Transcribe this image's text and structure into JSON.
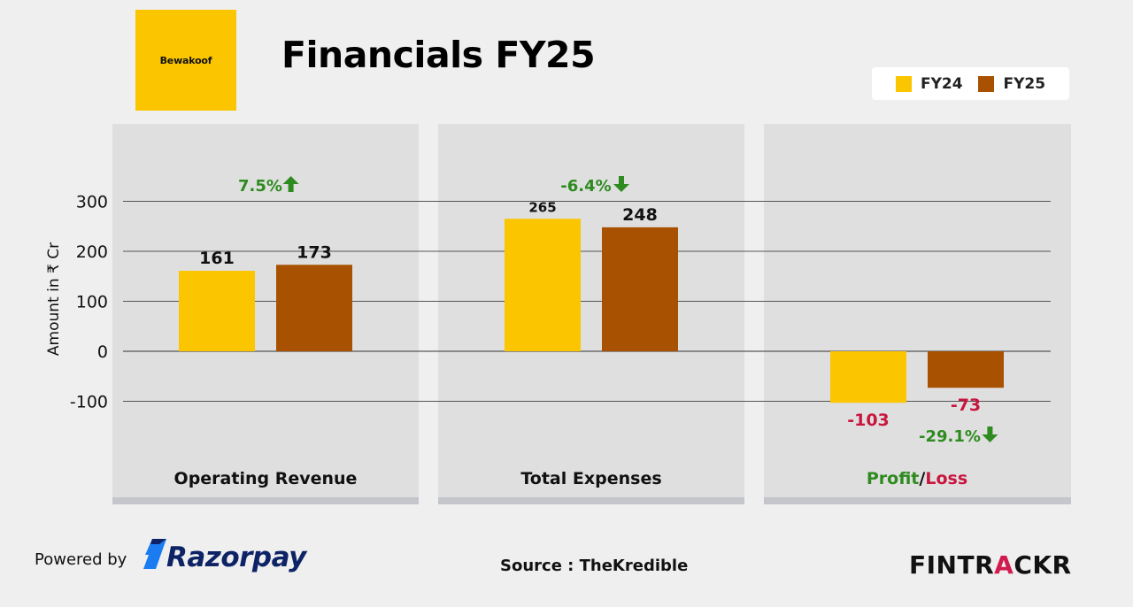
{
  "header": {
    "brand_logo": "Bewakoof",
    "title": "Financials FY25"
  },
  "legend": {
    "items": [
      {
        "label": "FY24",
        "color": "#fbc500"
      },
      {
        "label": "FY25",
        "color": "#a85100"
      }
    ]
  },
  "chart_data": {
    "type": "bar",
    "ylabel": "Amount in ₹ Cr",
    "ylim": [
      -100,
      300
    ],
    "yticks": [
      300,
      200,
      100,
      0,
      -100
    ],
    "series": [
      {
        "name": "FY24",
        "color": "#fbc500"
      },
      {
        "name": "FY25",
        "color": "#a85100"
      }
    ],
    "groups": [
      {
        "category": "Operating Revenue",
        "values": [
          161,
          173
        ],
        "labels": [
          "161",
          "173"
        ],
        "change": "7.5%",
        "change_dir": "up"
      },
      {
        "category": "Total Expenses",
        "values": [
          265,
          248
        ],
        "labels": [
          "265",
          "248"
        ],
        "change": "-6.4%",
        "change_dir": "down"
      },
      {
        "category_parts": [
          "Profit",
          "/",
          "Loss"
        ],
        "values": [
          -103,
          -73
        ],
        "labels": [
          "-103",
          "-73"
        ],
        "change": "-29.1%",
        "change_dir": "down"
      }
    ],
    "colors": {
      "positive": "#2e8b1f",
      "negative": "#c8163e",
      "label": "#111111"
    }
  },
  "footer": {
    "powered_by": "Powered by",
    "partner": "Razorpay",
    "source": "Source : TheKredible",
    "brand_prefix": "FINTR",
    "brand_accent": "A",
    "brand_suffix": "CKR"
  }
}
